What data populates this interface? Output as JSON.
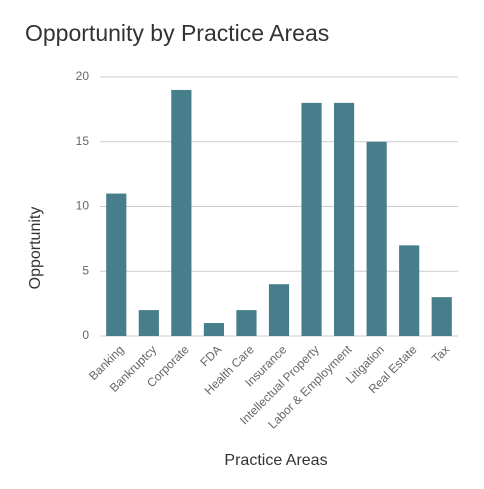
{
  "chart_data": {
    "type": "bar",
    "title": "Opportunity by Practice Areas",
    "x_label": "Practice Areas",
    "y_label": "Opportunity",
    "categories": [
      "Banking",
      "Bankruptcy",
      "Corporate",
      "FDA",
      "Health Care",
      "Insurance",
      "Intellectual Property",
      "Labor & Employment",
      "Litigation",
      "Real Estate",
      "Tax"
    ],
    "values": [
      11,
      2,
      19,
      1,
      2,
      4,
      18,
      18,
      15,
      7,
      3
    ],
    "color": "#467f8b",
    "ylim": [
      0,
      20
    ],
    "yticks": [
      0,
      5,
      10,
      15,
      20
    ],
    "grid": true
  }
}
